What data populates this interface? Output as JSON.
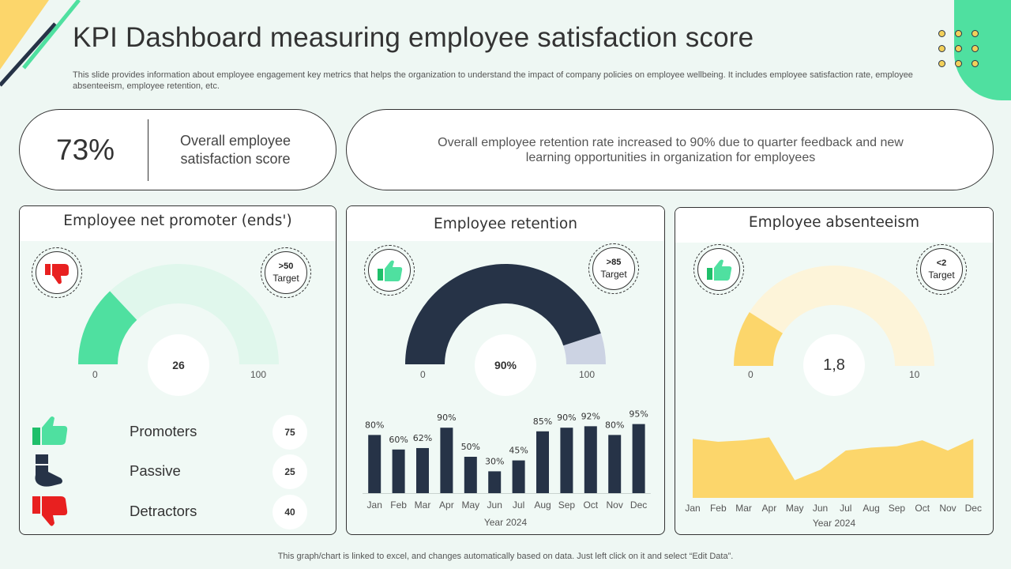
{
  "header": {
    "title": "KPI Dashboard measuring employee satisfaction score",
    "subtitle": "This slide provides information about employee engagement key metrics that helps the organization to understand the impact of company policies on employee wellbeing. It includes employee satisfaction rate, employee absenteeism, employee retention, etc."
  },
  "summary": {
    "score_value": "73%",
    "score_label": "Overall employee satisfaction score",
    "note": "Overall employee retention rate increased to 90% due to quarter feedback and new learning opportunities in organization for employees"
  },
  "colors": {
    "green": "#4fe0a0",
    "light_green": "#e0f7ec",
    "navy": "#263347",
    "light_navy": "#ccd3e3",
    "yellow": "#fcd66b",
    "light_yellow": "#fdf4d9",
    "red": "#e82020"
  },
  "chart_data": [
    {
      "type": "gauge",
      "title": "Employee net promoter (ends')",
      "value": 26,
      "display": "26",
      "min": 0,
      "max": 100,
      "min_label": "0",
      "max_label": "100",
      "target_value": ">50",
      "target_label": "Target",
      "status_icon": "thumbs-down-icon",
      "breakdown": [
        {
          "name": "Promoters",
          "value": "75",
          "icon": "thumbs-up-icon"
        },
        {
          "name": "Passive",
          "value": "25",
          "icon": "thumbs-side-icon"
        },
        {
          "name": "Detractors",
          "value": "40",
          "icon": "thumbs-down-icon"
        }
      ]
    },
    {
      "type": "gauge",
      "title": "Employee retention",
      "value": 90,
      "display": "90%",
      "min": 0,
      "max": 100,
      "min_label": "0",
      "max_label": "100",
      "target_value": ">85",
      "target_label": "Target",
      "status_icon": "thumbs-up-icon"
    },
    {
      "type": "bar",
      "categories": [
        "Jan",
        "Feb",
        "Mar",
        "Apr",
        "May",
        "Jun",
        "Jul",
        "Aug",
        "Sep",
        "Oct",
        "Nov",
        "Dec"
      ],
      "values": [
        80,
        60,
        62,
        90,
        50,
        30,
        45,
        85,
        90,
        92,
        80,
        95
      ],
      "labels": [
        "80%",
        "60%",
        "62%",
        "90%",
        "50%",
        "30%",
        "45%",
        "85%",
        "90%",
        "92%",
        "80%",
        "95%"
      ],
      "xlabel": "Year 2024",
      "ylim": [
        0,
        100
      ],
      "grid": false
    },
    {
      "type": "gauge",
      "title": "Employee absenteeism",
      "value": 1.8,
      "display": "1,8",
      "min": 0,
      "max": 10,
      "min_label": "0",
      "max_label": "10",
      "target_value": "<2",
      "target_label": "Target",
      "status_icon": "thumbs-up-icon"
    },
    {
      "type": "area",
      "categories": [
        "Jan",
        "Feb",
        "Mar",
        "Apr",
        "May",
        "Jun",
        "Jul",
        "Aug",
        "Sep",
        "Oct",
        "Nov",
        "Dec"
      ],
      "values": [
        2.0,
        1.9,
        1.95,
        2.05,
        0.6,
        0.95,
        1.6,
        1.7,
        1.75,
        1.95,
        1.6,
        2.0
      ],
      "xlabel": "Year 2024",
      "ylim": [
        0,
        2.3
      ],
      "grid": false
    }
  ],
  "footer": "This graph/chart is linked to excel, and changes automatically based on data. Just left click on it and select “Edit Data”."
}
